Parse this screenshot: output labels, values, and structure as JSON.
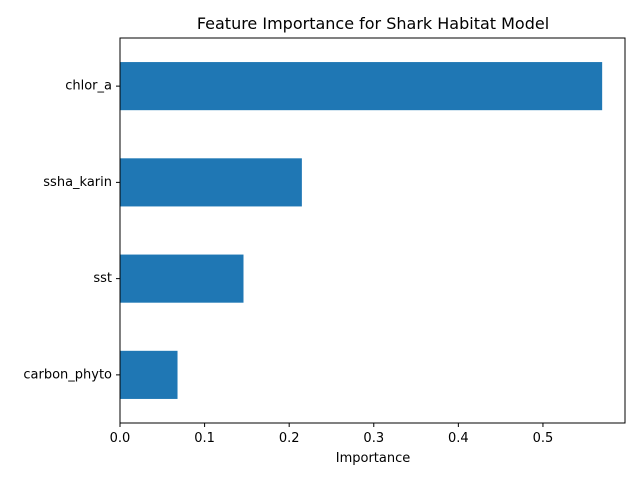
{
  "chart_data": {
    "type": "bar",
    "orientation": "horizontal",
    "title": "Feature Importance for Shark Habitat Model",
    "xlabel": "Importance",
    "ylabel": "",
    "categories": [
      "carbon_phyto",
      "sst",
      "ssha_karin",
      "chlor_a"
    ],
    "values": [
      0.068,
      0.146,
      0.215,
      0.57
    ],
    "xlim": [
      0,
      0.597
    ],
    "xticks": [
      0.0,
      0.1,
      0.2,
      0.3,
      0.4,
      0.5
    ],
    "xtick_labels": [
      "0.0",
      "0.1",
      "0.2",
      "0.3",
      "0.4",
      "0.5"
    ],
    "bar_color": "#1f77b4",
    "grid": false,
    "legend": "none"
  }
}
